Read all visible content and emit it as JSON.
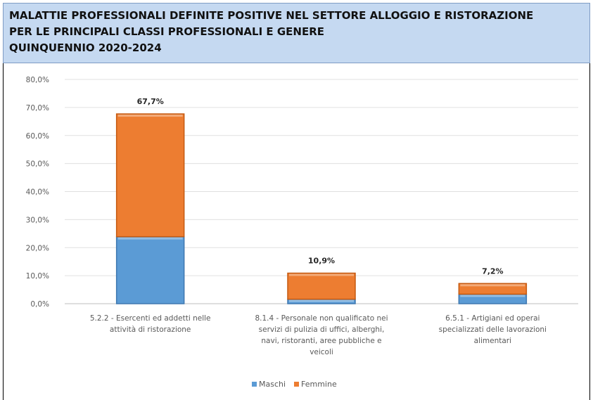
{
  "chart_data": {
    "type": "bar",
    "stacked": true,
    "title": [
      "MALATTIE PROFESSIONALI DEFINITE POSITIVE NEL SETTORE ALLOGGIO E RISTORAZIONE",
      "PER LE PRINCIPALI CLASSI PROFESSIONALI E GENERE",
      "QUINQUENNIO 2020-2024"
    ],
    "categories": [
      [
        "5.2.2 - Esercenti ed addetti nelle",
        "attività di ristorazione"
      ],
      [
        "8.1.4 - Personale non qualificato nei",
        "servizi di pulizia di uffici, alberghi,",
        "navi, ristoranti, aree pubbliche e",
        "veicoli"
      ],
      [
        "6.5.1 - Artigiani ed operai",
        "specializzati delle lavorazioni",
        "alimentari"
      ]
    ],
    "series": [
      {
        "name": "Maschi",
        "values": [
          23.9,
          1.6,
          3.4
        ],
        "color": "#5b9bd5"
      },
      {
        "name": "Femmine",
        "values": [
          43.8,
          9.3,
          3.8
        ],
        "color": "#ed7d31"
      }
    ],
    "totals": [
      "67,7%",
      "10,9%",
      "7,2%"
    ],
    "ylim": [
      0,
      80
    ],
    "yticks": [
      "0,0%",
      "10,0%",
      "20,0%",
      "30,0%",
      "40,0%",
      "50,0%",
      "60,0%",
      "70,0%",
      "80,0%"
    ],
    "grid": true,
    "legend_position": "bottom"
  }
}
